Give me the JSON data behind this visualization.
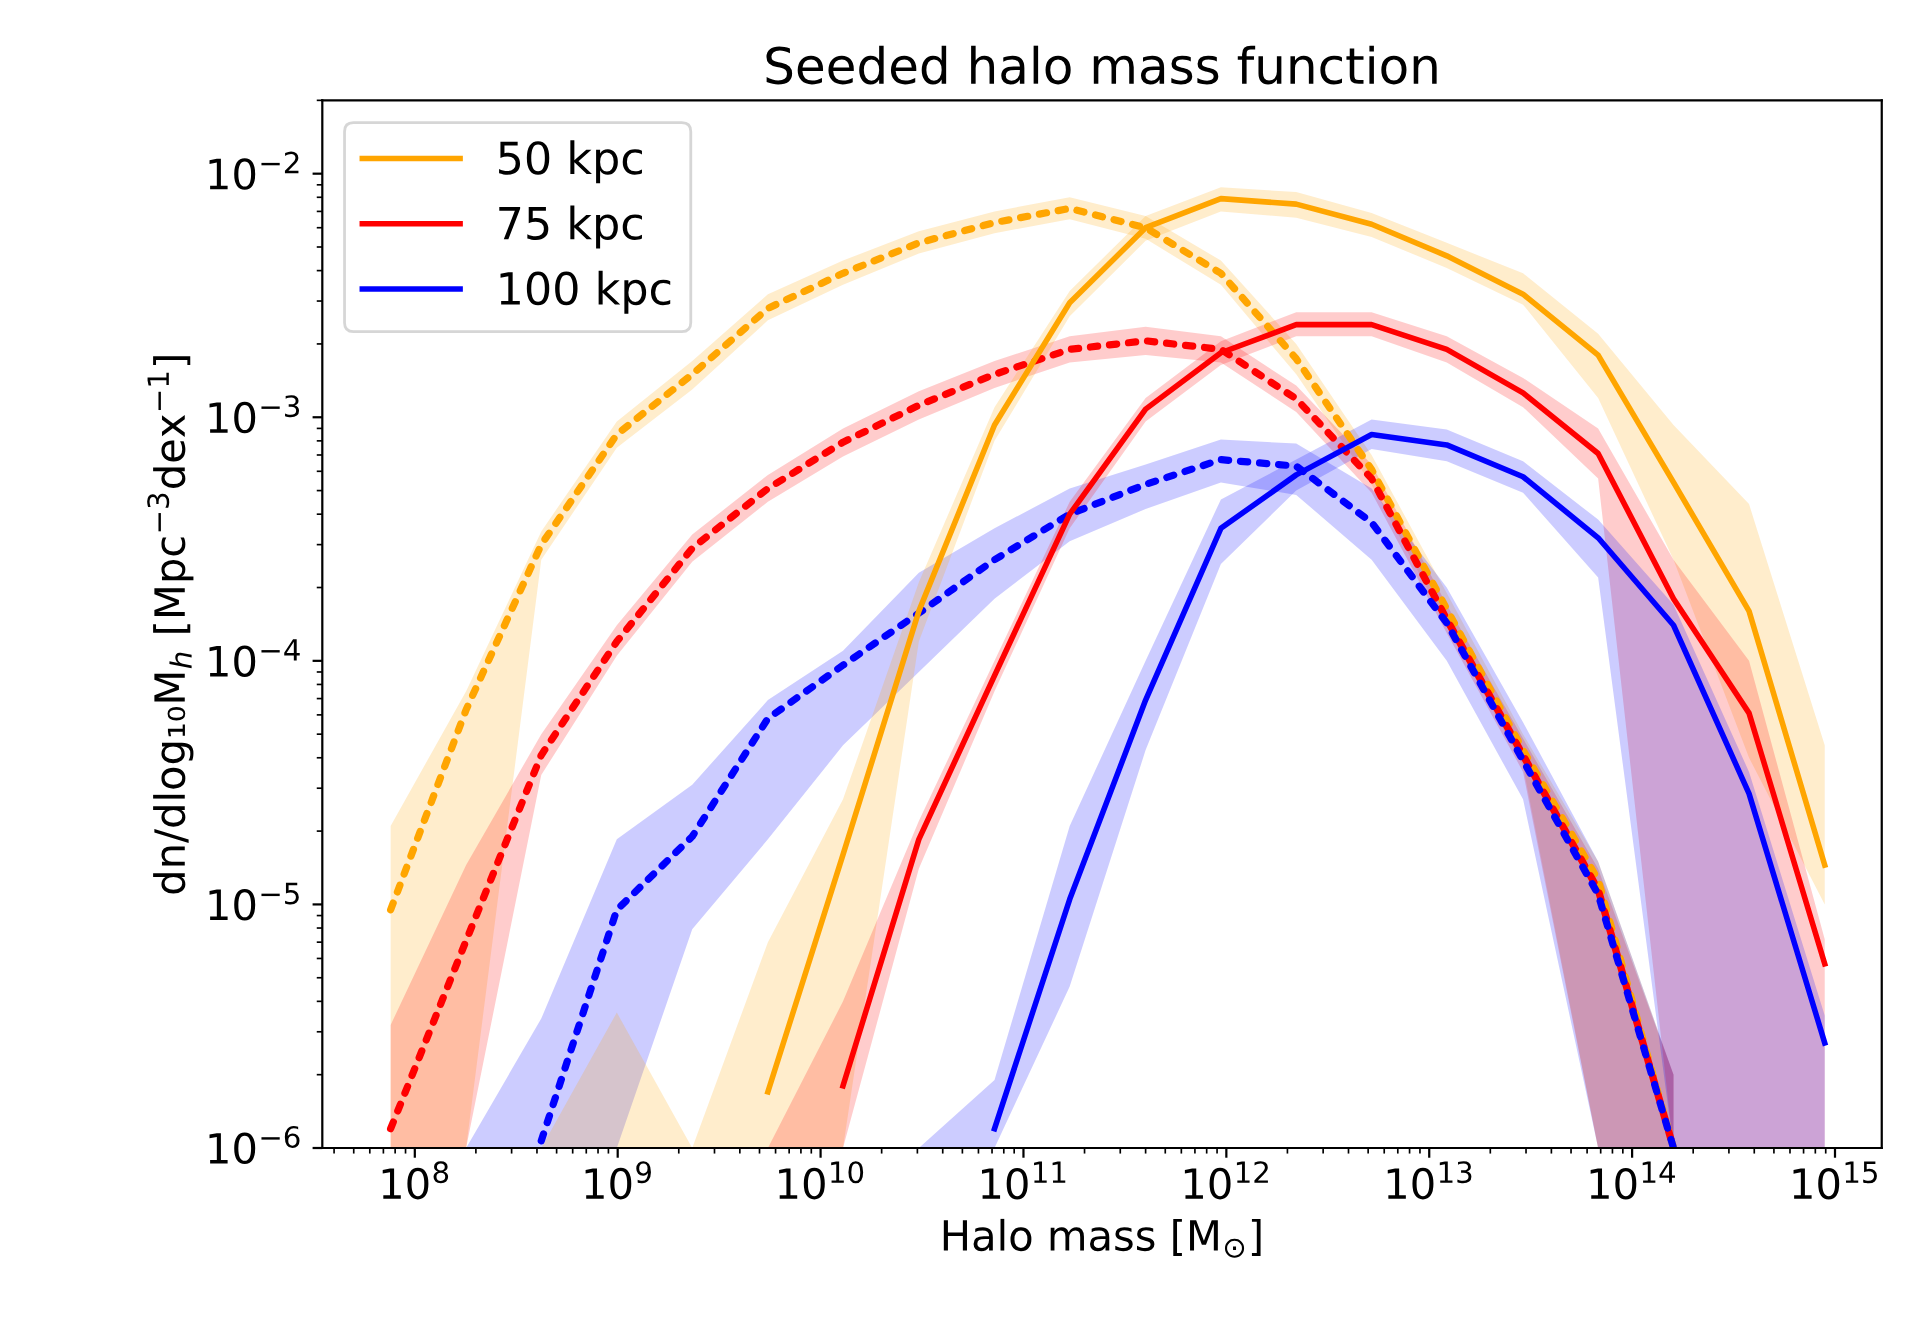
{
  "chart_data": {
    "type": "line",
    "title": "Seeded halo mass function",
    "xlabel": "Halo mass [M$_{⊙}$]",
    "ylabel": "dn/dlog₁₀M$_{h}$ [Mpc$^{−3}$dex$^{−1}$]",
    "log": "xy",
    "grid": false,
    "legend": "top left",
    "marker": "none",
    "xlim": [
      35000000.0,
      1700000000000000.0
    ],
    "ylim": [
      1e-06,
      0.02
    ],
    "xticks": [
      {
        "value": 100000000.0,
        "label": "10$^{8}$"
      },
      {
        "value": 1000000000.0,
        "label": "10$^{9}$"
      },
      {
        "value": 10000000000.0,
        "label": "10$^{10}$"
      },
      {
        "value": 100000000000.0,
        "label": "10$^{11}$"
      },
      {
        "value": 1000000000000.0,
        "label": "10$^{12}$"
      },
      {
        "value": 10000000000000.0,
        "label": "10$^{13}$"
      },
      {
        "value": 100000000000000.0,
        "label": "10$^{14}$"
      },
      {
        "value": 1000000000000000.0,
        "label": "10$^{15}$"
      }
    ],
    "yticks": [
      {
        "value": 1e-06,
        "label": "10$^{−6}$"
      },
      {
        "value": 1e-05,
        "label": "10$^{−5}$"
      },
      {
        "value": 0.0001,
        "label": "10$^{−4}$"
      },
      {
        "value": 0.001,
        "label": "10$^{−3}$"
      },
      {
        "value": 0.01,
        "label": "10$^{−2}$"
      }
    ],
    "x": [
      76000000.0,
      179000000.0,
      420000000.0,
      990000000.0,
      2330000000.0,
      5500000000.0,
      12900000000.0,
      30500000000.0,
      72000000000.0,
      169000000000.0,
      400000000000.0,
      940000000000.0,
      2210000000000.0,
      5200000000000.0,
      12200000000000.0,
      29000000000000.0,
      68000000000000.0,
      160000000000000.0,
      377000000000000.0,
      890000000000000.0
    ],
    "series": [
      {
        "color": "#ffa500",
        "line_style": "dotted",
        "values": [
          9.5e-06,
          6.3e-05,
          0.0003,
          0.00085,
          0.0015,
          0.0028,
          0.0039,
          0.0052,
          0.0063,
          0.0072,
          0.006,
          0.0039,
          0.00174,
          0.00061,
          0.000163,
          4.3e-05,
          1.26e-05,
          1e-06,
          null,
          null
        ],
        "upper": [
          2.1e-05,
          7.5e-05,
          0.00034,
          0.00096,
          0.0017,
          0.0032,
          0.0044,
          0.0058,
          0.007,
          0.008,
          0.0067,
          0.0044,
          0.002,
          0.0007,
          0.00019,
          5e-05,
          1.5e-05,
          2e-06,
          null,
          null
        ],
        "lower": [
          1e-06,
          1e-06,
          0.00026,
          0.00075,
          0.0013,
          0.0025,
          0.0035,
          0.0047,
          0.0057,
          0.0065,
          0.0054,
          0.0035,
          0.0015,
          0.00053,
          0.00014,
          3.7e-05,
          1e-06,
          1e-06,
          null,
          null
        ]
      },
      {
        "color": "#ff0000",
        "line_style": "dotted",
        "values": [
          1.2e-06,
          7.1e-06,
          4.1e-05,
          0.00012,
          0.00029,
          0.00051,
          0.00079,
          0.00112,
          0.0015,
          0.0019,
          0.00206,
          0.0019,
          0.00119,
          0.00056,
          0.000148,
          4.1e-05,
          1.15e-05,
          1e-06,
          null,
          null
        ],
        "upper": [
          3.2e-06,
          1.45e-05,
          5e-05,
          0.00014,
          0.00033,
          0.00058,
          0.0009,
          0.00128,
          0.0017,
          0.00215,
          0.00235,
          0.00215,
          0.00135,
          0.00064,
          0.00017,
          4.8e-05,
          1.4e-05,
          2e-06,
          null,
          null
        ],
        "lower": [
          1e-06,
          1e-06,
          3.4e-05,
          0.000105,
          0.000255,
          0.00045,
          0.00069,
          0.00098,
          0.00132,
          0.00168,
          0.0018,
          0.00168,
          0.00105,
          0.00049,
          0.00013,
          3.5e-05,
          1e-06,
          1e-06,
          null,
          null
        ]
      },
      {
        "color": "#0000ff",
        "line_style": "dotted",
        "values": [
          null,
          null,
          1.07e-06,
          9.5e-06,
          1.9e-05,
          5.8e-05,
          9.6e-05,
          0.000157,
          0.00026,
          0.0004,
          0.00053,
          0.00067,
          0.00063,
          0.00037,
          0.000143,
          3.9e-05,
          1.1e-05,
          1e-06,
          null,
          null
        ],
        "upper": [
          null,
          1e-06,
          3.4e-06,
          1.85e-05,
          3.1e-05,
          6.9e-05,
          0.00011,
          0.00023,
          0.00035,
          0.00051,
          0.00064,
          0.00081,
          0.00078,
          0.00051,
          0.0002,
          5.6e-05,
          1.5e-05,
          2e-06,
          null,
          null
        ],
        "lower": [
          null,
          1e-06,
          1e-06,
          1e-06,
          7.9e-06,
          1.85e-05,
          4.5e-05,
          9e-05,
          0.00018,
          0.00031,
          0.00042,
          0.00054,
          0.00048,
          0.00026,
          0.0001,
          2.7e-05,
          1e-06,
          1e-06,
          null,
          null
        ]
      },
      {
        "name": "50 kpc",
        "color": "#ffa500",
        "line_style": "solid",
        "values": [
          null,
          null,
          null,
          null,
          null,
          1.7e-06,
          1.6e-05,
          0.00016,
          0.00093,
          0.00295,
          0.006,
          0.0079,
          0.0075,
          0.0062,
          0.0046,
          0.0032,
          0.0018,
          0.00054,
          0.00016,
          1.45e-05
        ],
        "upper": [
          null,
          null,
          1e-06,
          3.6e-06,
          1e-06,
          7e-06,
          2.7e-05,
          0.00021,
          0.0011,
          0.0033,
          0.0067,
          0.0088,
          0.0084,
          0.0069,
          0.0052,
          0.0039,
          0.0022,
          0.00093,
          0.00044,
          4.5e-05
        ],
        "lower": [
          null,
          null,
          1e-06,
          1e-06,
          1e-06,
          1e-06,
          1e-06,
          0.00012,
          0.0008,
          0.0026,
          0.0053,
          0.007,
          0.0066,
          0.0055,
          0.0041,
          0.0029,
          0.0012,
          0.00026,
          4e-05,
          1e-05
        ]
      },
      {
        "name": "75 kpc",
        "color": "#ff0000",
        "line_style": "solid",
        "values": [
          null,
          null,
          null,
          null,
          null,
          null,
          1.8e-06,
          1.85e-05,
          8.7e-05,
          0.0004,
          0.00108,
          0.00184,
          0.0024,
          0.0024,
          0.0019,
          0.00126,
          0.00071,
          0.00018,
          6.1e-05,
          5.7e-06
        ],
        "upper": [
          null,
          null,
          null,
          null,
          null,
          1e-06,
          4e-06,
          2.2e-05,
          0.0001,
          0.00045,
          0.0012,
          0.00205,
          0.0027,
          0.0027,
          0.00215,
          0.00145,
          0.0009,
          0.00026,
          0.0001,
          7.2e-06
        ],
        "lower": [
          null,
          null,
          null,
          null,
          null,
          1e-06,
          1e-06,
          1.4e-05,
          7.5e-05,
          0.00035,
          0.00096,
          0.00164,
          0.00215,
          0.00215,
          0.00168,
          0.0011,
          0.00056,
          1e-06,
          1e-06,
          1e-06
        ]
      },
      {
        "name": "100 kpc",
        "color": "#0000ff",
        "line_style": "solid",
        "values": [
          null,
          null,
          null,
          null,
          null,
          null,
          null,
          null,
          1.2e-06,
          1.05e-05,
          6.9e-05,
          0.00035,
          0.00058,
          0.00085,
          0.00077,
          0.00057,
          0.00032,
          0.00014,
          2.85e-05,
          2.7e-06
        ],
        "upper": [
          null,
          null,
          null,
          null,
          null,
          null,
          null,
          1e-06,
          1.9e-06,
          2.1e-05,
          0.0001,
          0.00046,
          0.00067,
          0.00098,
          0.00089,
          0.00066,
          0.00038,
          0.00017,
          3.5e-05,
          3.5e-06
        ],
        "lower": [
          null,
          null,
          null,
          null,
          null,
          null,
          null,
          1e-06,
          1e-06,
          4.6e-06,
          4.3e-05,
          0.00025,
          0.0005,
          0.00074,
          0.00066,
          0.00049,
          0.00022,
          1e-06,
          1e-06,
          1e-06
        ]
      }
    ]
  }
}
